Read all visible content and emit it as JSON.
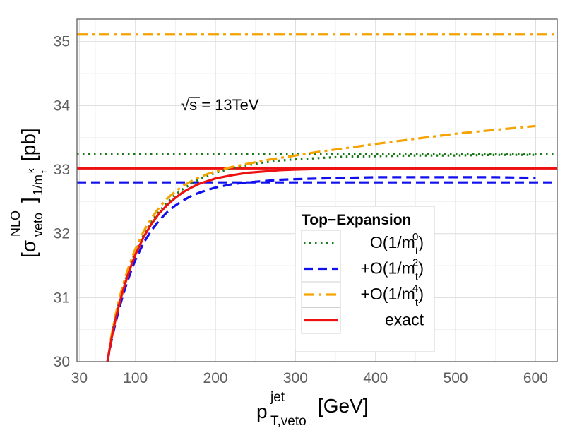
{
  "chart_data": {
    "type": "line",
    "annotation": {
      "sqrt": "√s",
      "text": " = 13TeV"
    },
    "xlabel": {
      "main": "p",
      "sup": "jet",
      "sub": "T,veto",
      "unit": "[GeV]"
    },
    "ylabel": {
      "main": "[σ",
      "sup": "NLO",
      "sub": "veto",
      "close": "]",
      "sub2": "1/m",
      "sub2sup": "k",
      "sub2sub": "t",
      "unit": "[pb]"
    },
    "xlim": [
      27,
      627
    ],
    "ylim": [
      30,
      35.35
    ],
    "xticks": [
      30,
      100,
      200,
      300,
      400,
      500,
      600
    ],
    "xtick_labels": [
      "30",
      "100",
      "200",
      "300",
      "400",
      "500",
      "600"
    ],
    "yticks": [
      30,
      31,
      32,
      33,
      34,
      35
    ],
    "ytick_labels": [
      "30",
      "31",
      "32",
      "33",
      "34",
      "35"
    ],
    "xminor": [
      50,
      150,
      250,
      350,
      450,
      550
    ],
    "yminor": [
      30.5,
      31.5,
      32.5,
      33.5,
      34.5
    ],
    "legend": {
      "title": "Top−Expansion",
      "position": "bottom-right",
      "entries": [
        {
          "prefix": "",
          "main": "O(1/m",
          "sub": "t",
          "sup": "0",
          "close": ")"
        },
        {
          "prefix": "+",
          "main": "O(1/m",
          "sub": "t",
          "sup": "2",
          "close": ")"
        },
        {
          "prefix": "+",
          "main": "O(1/m",
          "sub": "t",
          "sup": "4",
          "close": ")"
        },
        {
          "prefix": "",
          "main": "exact",
          "sub": "",
          "sup": "",
          "close": ""
        }
      ]
    },
    "series": [
      {
        "name": "O(1/mt^0)",
        "color": "#1a7a1a",
        "dash": "dotted",
        "x": [
          65,
          70,
          75,
          80,
          85,
          90,
          95,
          100,
          110,
          120,
          130,
          140,
          150,
          160,
          170,
          180,
          190,
          200,
          220,
          240,
          260,
          280,
          300,
          330,
          360,
          400,
          450,
          500,
          550,
          600
        ],
        "y": [
          30.0,
          30.38,
          30.69,
          30.94,
          31.17,
          31.37,
          31.55,
          31.71,
          31.97,
          32.18,
          32.35,
          32.49,
          32.61,
          32.7,
          32.78,
          32.85,
          32.9,
          32.95,
          33.02,
          33.07,
          33.11,
          33.14,
          33.16,
          33.18,
          33.2,
          33.21,
          33.22,
          33.22,
          33.23,
          33.23
        ]
      },
      {
        "name": "+O(1/mt^2)",
        "color": "#1010ee",
        "dash": "dashed",
        "x": [
          65,
          70,
          75,
          80,
          85,
          90,
          95,
          100,
          110,
          120,
          130,
          140,
          150,
          160,
          170,
          180,
          190,
          200,
          220,
          240,
          260,
          280,
          300,
          330,
          360,
          400,
          450,
          500,
          550,
          600
        ],
        "y": [
          30.0,
          30.32,
          30.6,
          30.84,
          31.06,
          31.25,
          31.43,
          31.59,
          31.85,
          32.05,
          32.21,
          32.34,
          32.44,
          32.52,
          32.59,
          32.64,
          32.68,
          32.72,
          32.77,
          32.8,
          32.82,
          32.84,
          32.85,
          32.86,
          32.87,
          32.88,
          32.88,
          32.88,
          32.88,
          32.87
        ]
      },
      {
        "name": "+O(1/mt^4)",
        "color": "#f5a300",
        "dash": "dashdot",
        "x": [
          65,
          70,
          75,
          80,
          85,
          90,
          95,
          100,
          110,
          120,
          130,
          140,
          150,
          160,
          170,
          180,
          190,
          200,
          220,
          240,
          260,
          280,
          300,
          330,
          360,
          400,
          450,
          500,
          550,
          600
        ],
        "y": [
          30.0,
          30.4,
          30.72,
          30.99,
          31.22,
          31.42,
          31.6,
          31.76,
          32.03,
          32.24,
          32.41,
          32.55,
          32.66,
          32.75,
          32.82,
          32.88,
          32.93,
          32.97,
          33.04,
          33.09,
          33.14,
          33.18,
          33.22,
          33.28,
          33.33,
          33.4,
          33.48,
          33.56,
          33.62,
          33.68
        ]
      },
      {
        "name": "exact",
        "color": "#ee1111",
        "dash": "solid",
        "x": [
          65,
          70,
          75,
          80,
          85,
          90,
          95,
          100,
          110,
          120,
          130,
          140,
          150,
          160,
          170,
          180,
          190,
          200,
          220,
          240,
          260,
          280,
          300,
          330,
          360,
          400,
          450,
          500,
          550,
          600
        ],
        "y": [
          30.0,
          30.35,
          30.65,
          30.91,
          31.13,
          31.33,
          31.51,
          31.67,
          31.94,
          32.15,
          32.32,
          32.45,
          32.56,
          32.65,
          32.72,
          32.78,
          32.82,
          32.86,
          32.91,
          32.95,
          32.97,
          32.99,
          33.0,
          33.01,
          33.015,
          33.02,
          33.02,
          33.02,
          33.02,
          33.02
        ]
      }
    ],
    "hlines": [
      {
        "name": "O(1/mt^0) asymptote",
        "y": 33.24,
        "color": "#1a7a1a",
        "dash": "dotted"
      },
      {
        "name": "+O(1/mt^2) asymptote",
        "y": 32.8,
        "color": "#1010ee",
        "dash": "dashed"
      },
      {
        "name": "+O(1/mt^4) asymptote",
        "y": 35.11,
        "color": "#f5a300",
        "dash": "dashdot"
      },
      {
        "name": "exact asymptote",
        "y": 33.02,
        "color": "#ee1111",
        "dash": "solid"
      }
    ],
    "grid": true
  }
}
